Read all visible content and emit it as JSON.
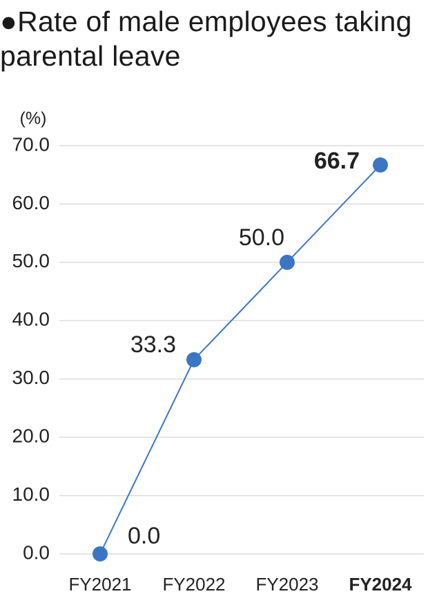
{
  "chart_data": {
    "type": "line",
    "title": "●Rate of male employees taking parental leave",
    "y_label": "(%)",
    "categories": [
      "FY2021",
      "FY2022",
      "FY2023",
      "FY2024"
    ],
    "series": [
      {
        "name": "Rate of male employees taking parental leave",
        "color": "#3b76c4",
        "values": [
          0.0,
          33.3,
          50.0,
          66.7
        ],
        "value_labels": [
          "0.0",
          "33.3",
          "50.0",
          "66.7"
        ]
      }
    ],
    "ylim": [
      0,
      70
    ],
    "yticks": [
      {
        "value": 0,
        "label": "0.0"
      },
      {
        "value": 10,
        "label": "10.0"
      },
      {
        "value": 20,
        "label": "20.0"
      },
      {
        "value": 30,
        "label": "30.0"
      },
      {
        "value": 40,
        "label": "40.0"
      },
      {
        "value": 50,
        "label": "50.0"
      },
      {
        "value": 60,
        "label": "60.0"
      },
      {
        "value": 70,
        "label": "70.0"
      }
    ],
    "grid": true
  }
}
